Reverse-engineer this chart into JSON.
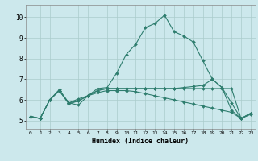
{
  "title": "",
  "xlabel": "Humidex (Indice chaleur)",
  "bg_color": "#cce8ec",
  "grid_color": "#aacccc",
  "line_color": "#2e7d6e",
  "xlim": [
    -0.5,
    23.5
  ],
  "ylim": [
    4.6,
    10.6
  ],
  "xticks": [
    0,
    1,
    2,
    3,
    4,
    5,
    6,
    7,
    8,
    9,
    10,
    11,
    12,
    13,
    14,
    15,
    16,
    17,
    18,
    19,
    20,
    21,
    22,
    23
  ],
  "yticks": [
    5,
    6,
    7,
    8,
    9,
    10
  ],
  "lines": [
    [
      5.2,
      5.1,
      6.0,
      6.5,
      5.85,
      5.75,
      6.2,
      6.55,
      6.6,
      7.3,
      8.2,
      8.7,
      9.5,
      9.7,
      10.1,
      9.3,
      9.1,
      8.8,
      7.9,
      7.0,
      6.6,
      5.5,
      5.1,
      5.3
    ],
    [
      5.2,
      5.1,
      6.0,
      6.45,
      5.85,
      6.05,
      6.2,
      6.45,
      6.55,
      6.55,
      6.55,
      6.55,
      6.55,
      6.55,
      6.55,
      6.55,
      6.6,
      6.65,
      6.7,
      7.0,
      6.6,
      5.85,
      5.1,
      5.35
    ],
    [
      5.2,
      5.1,
      6.0,
      6.45,
      5.8,
      5.95,
      6.2,
      6.35,
      6.45,
      6.45,
      6.45,
      6.4,
      6.3,
      6.2,
      6.1,
      6.0,
      5.9,
      5.8,
      5.7,
      5.6,
      5.5,
      5.4,
      5.1,
      5.35
    ],
    [
      5.2,
      5.1,
      6.0,
      6.45,
      5.85,
      5.95,
      6.2,
      6.45,
      6.55,
      6.55,
      6.55,
      6.55,
      6.55,
      6.55,
      6.55,
      6.55,
      6.55,
      6.55,
      6.55,
      6.55,
      6.55,
      6.55,
      5.1,
      5.35
    ]
  ]
}
